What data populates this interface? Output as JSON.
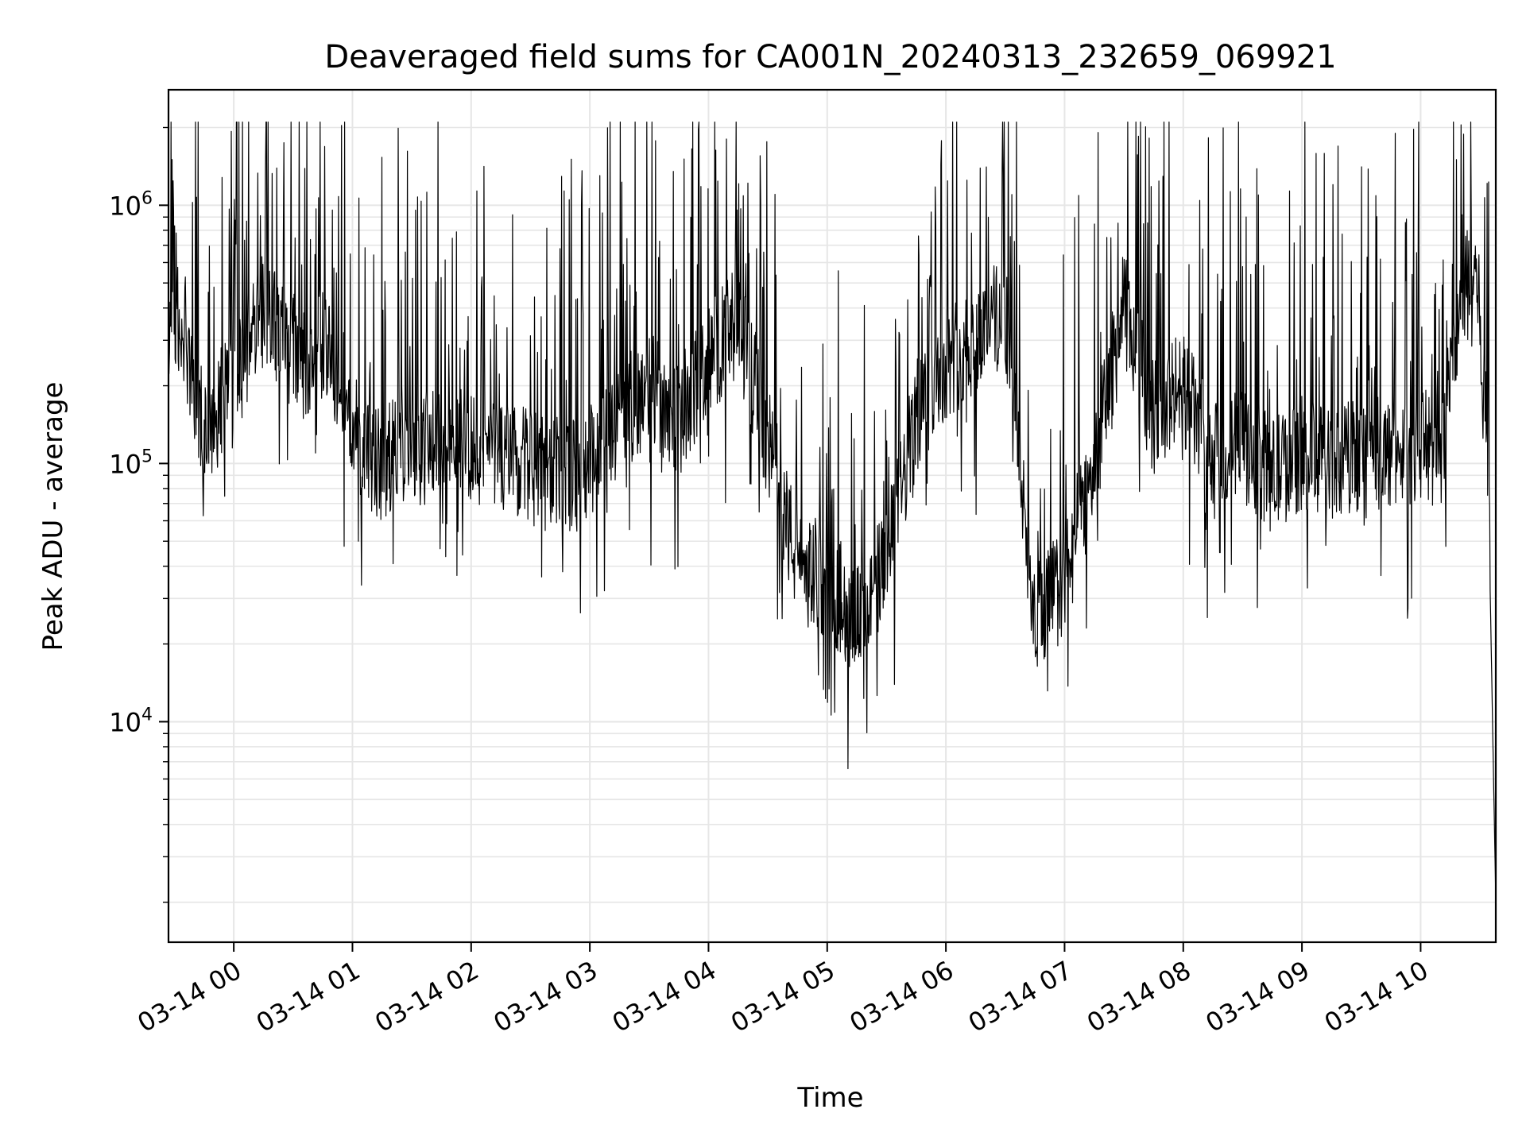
{
  "chart_data": {
    "type": "line",
    "title": "Deaveraged field sums for CA001N_20240313_232659_069921",
    "xlabel": "Time",
    "ylabel": "Peak ADU - average",
    "y_scale": "log",
    "grid": true,
    "grid_minor": true,
    "line_color": "#000000",
    "grid_color": "#e6e6e6",
    "xlim": [
      "03-13 23:27",
      "03-14 10:38"
    ],
    "ylim": [
      1400,
      2800000
    ],
    "x_ticks": [
      {
        "label": "03-14 00",
        "hour": 0
      },
      {
        "label": "03-14 01",
        "hour": 1
      },
      {
        "label": "03-14 02",
        "hour": 2
      },
      {
        "label": "03-14 03",
        "hour": 3
      },
      {
        "label": "03-14 04",
        "hour": 4
      },
      {
        "label": "03-14 05",
        "hour": 5
      },
      {
        "label": "03-14 06",
        "hour": 6
      },
      {
        "label": "03-14 07",
        "hour": 7
      },
      {
        "label": "03-14 08",
        "hour": 8
      },
      {
        "label": "03-14 09",
        "hour": 9
      },
      {
        "label": "03-14 10",
        "hour": 10
      }
    ],
    "y_ticks": [
      {
        "base": "10",
        "exp": "4",
        "value": 10000
      },
      {
        "base": "10",
        "exp": "5",
        "value": 100000
      },
      {
        "base": "10",
        "exp": "6",
        "value": 1000000
      }
    ],
    "series": [
      {
        "x": [
          "03-13 23:27",
          "03-13 23:33",
          "03-13 23:38",
          "03-13 23:44",
          "03-13 23:50",
          "03-13 23:55",
          "03-14 00:05",
          "03-14 00:15",
          "03-14 00:25",
          "03-14 00:35",
          "03-14 00:45",
          "03-14 00:55",
          "03-14 01:05",
          "03-14 01:15",
          "03-14 01:25",
          "03-14 01:35",
          "03-14 01:45",
          "03-14 01:55",
          "03-14 02:10",
          "03-14 02:25",
          "03-14 02:40",
          "03-14 02:55",
          "03-14 03:10",
          "03-14 03:30",
          "03-14 03:45",
          "03-14 04:00",
          "03-14 04:15",
          "03-14 04:30",
          "03-14 04:45",
          "03-14 05:00",
          "03-14 05:15",
          "03-14 05:30",
          "03-14 05:45",
          "03-14 06:00",
          "03-14 06:15",
          "03-14 06:30",
          "03-14 06:45",
          "03-14 07:00",
          "03-14 07:15",
          "03-14 07:30",
          "03-14 07:45",
          "03-14 08:00",
          "03-14 08:15",
          "03-14 08:30",
          "03-14 08:45",
          "03-14 09:00",
          "03-14 09:15",
          "03-14 09:30",
          "03-14 09:45",
          "03-14 10:00",
          "03-14 10:10",
          "03-14 10:20",
          "03-14 10:28",
          "03-14 10:34",
          "03-14 10:38"
        ],
        "y": [
          300000,
          400000,
          250000,
          150000,
          120000,
          200000,
          250000,
          400000,
          300000,
          250000,
          300000,
          200000,
          110000,
          100000,
          120000,
          110000,
          130000,
          120000,
          110000,
          100000,
          90000,
          90000,
          130000,
          200000,
          150000,
          250000,
          350000,
          120000,
          40000,
          35000,
          25000,
          40000,
          150000,
          250000,
          300000,
          400000,
          25000,
          35000,
          100000,
          400000,
          150000,
          200000,
          100000,
          120000,
          90000,
          110000,
          100000,
          110000,
          110000,
          120000,
          110000,
          400000,
          600000,
          100000,
          2000
        ]
      }
    ]
  }
}
